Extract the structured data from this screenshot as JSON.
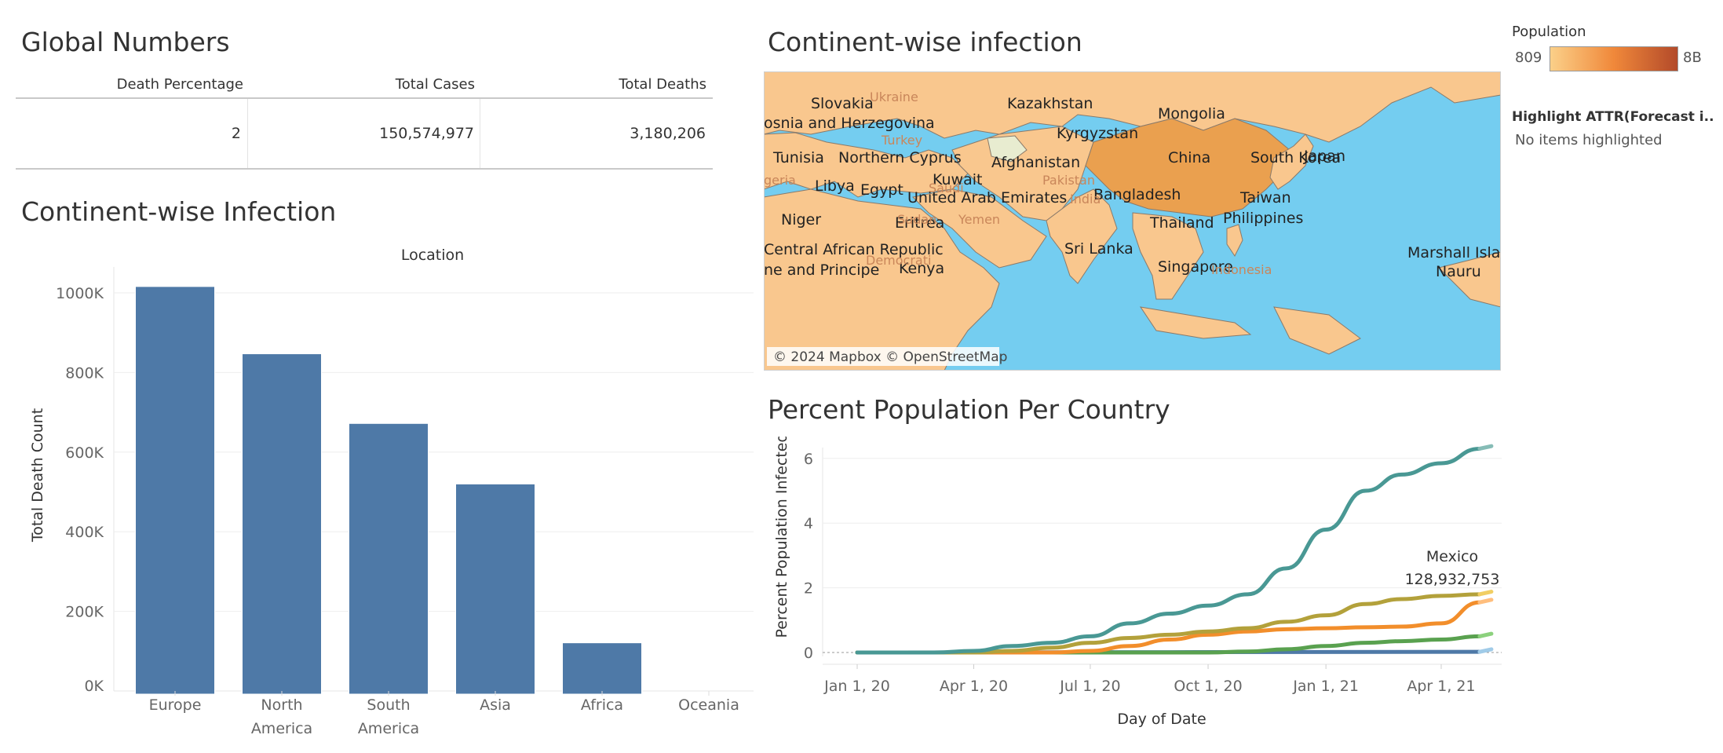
{
  "global": {
    "title": "Global Numbers",
    "headers": [
      "Death Percentage",
      "Total Cases",
      "Total Deaths"
    ],
    "values": [
      "2",
      "150,574,977",
      "3,180,206"
    ]
  },
  "bar_section": {
    "title": "Continent-wise Infection",
    "top_label": "Location",
    "ylabel": "Total Death Count"
  },
  "map_section": {
    "title": "Continent-wise infection",
    "attribution": "© 2024 Mapbox © OpenStreetMap",
    "colors": {
      "water": "#74cdf0",
      "land": "#f9c78e",
      "land_dark": "#efa35a",
      "china": "#eaa04f",
      "border": "#7a6a5a"
    },
    "labels": [
      {
        "text": "Slovakia",
        "style": "main"
      },
      {
        "text": "Kazakhstan",
        "style": "main"
      },
      {
        "text": "Mongolia",
        "style": "main"
      },
      {
        "text": "osnia and Herzegovina",
        "style": "main"
      },
      {
        "text": "Kyrgyzstan",
        "style": "main"
      },
      {
        "text": "Tunisia",
        "style": "main"
      },
      {
        "text": "Northern Cyprus",
        "style": "main"
      },
      {
        "text": "Afghanistan",
        "style": "main"
      },
      {
        "text": "China",
        "style": "main"
      },
      {
        "text": "South Korea",
        "style": "main"
      },
      {
        "text": "Japan",
        "style": "main"
      },
      {
        "text": "Kuwait",
        "style": "main"
      },
      {
        "text": "Libya",
        "style": "main"
      },
      {
        "text": "Egypt",
        "style": "main"
      },
      {
        "text": "United Arab Emirates",
        "style": "main"
      },
      {
        "text": "Bangladesh",
        "style": "main"
      },
      {
        "text": "Taiwan",
        "style": "main"
      },
      {
        "text": "Niger",
        "style": "main"
      },
      {
        "text": "Eritrea",
        "style": "main"
      },
      {
        "text": "Thailand",
        "style": "main"
      },
      {
        "text": "Philippines",
        "style": "main"
      },
      {
        "text": "Central African Republic",
        "style": "main"
      },
      {
        "text": "Sri Lanka",
        "style": "main"
      },
      {
        "text": "Marshall Isla",
        "style": "main"
      },
      {
        "text": "ne and Principe",
        "style": "main"
      },
      {
        "text": "Kenya",
        "style": "main"
      },
      {
        "text": "Singapore",
        "style": "main"
      },
      {
        "text": "Nauru",
        "style": "main"
      },
      {
        "text": "Ukraine",
        "style": "faint"
      },
      {
        "text": "Turkey",
        "style": "faint"
      },
      {
        "text": "geria",
        "style": "faint"
      },
      {
        "text": "Saudi",
        "style": "faint"
      },
      {
        "text": "Pakistan",
        "style": "faint"
      },
      {
        "text": "India",
        "style": "faint"
      },
      {
        "text": "Sudan",
        "style": "faint"
      },
      {
        "text": "Yemen",
        "style": "faint"
      },
      {
        "text": "Democrati",
        "style": "faint"
      },
      {
        "text": "Indonesia",
        "style": "faint"
      }
    ]
  },
  "legend": {
    "population_title": "Population",
    "min_label": "809",
    "max_label": "8B",
    "gradient_start": "#fbd089",
    "gradient_mid": "#f0883a",
    "gradient_end": "#b34a2a",
    "highlight_title": "Highlight ATTR(Forecast i..",
    "highlight_value": "No items highlighted"
  },
  "line_section": {
    "title": "Percent Population Per Country",
    "annotation_name": "Mexico",
    "annotation_value": "128,932,753"
  },
  "chart_data": [
    {
      "type": "bar",
      "title": "Continent-wise Infection",
      "xlabel": "Location",
      "ylabel": "Total Death Count",
      "categories": [
        [
          "Europe"
        ],
        [
          "North",
          "America"
        ],
        [
          "South",
          "America"
        ],
        [
          "Asia"
        ],
        [
          "Africa"
        ],
        [
          "Oceania"
        ]
      ],
      "values": [
        1016000,
        847000,
        672000,
        520000,
        121000,
        0
      ],
      "ylim": [
        0,
        1050000
      ],
      "yticks": [
        0,
        200000,
        400000,
        600000,
        800000,
        1000000
      ],
      "ytick_labels": [
        "0K",
        "200K",
        "400K",
        "600K",
        "800K",
        "1000K"
      ],
      "color": "#4e79a7",
      "grid": true
    },
    {
      "type": "line",
      "title": "Percent Population Per Country",
      "xlabel": "Day of Date",
      "ylabel": "Percent Population Infected",
      "xlim": [
        "2019-12-01",
        "2021-05-25"
      ],
      "ylim": [
        -0.5,
        6.8
      ],
      "xticks": [
        "2020-01-01",
        "2020-04-01",
        "2020-07-01",
        "2020-10-01",
        "2021-01-01",
        "2021-04-01"
      ],
      "xtick_labels": [
        "Jan 1, 20",
        "Apr 1, 20",
        "Jul 1, 20",
        "Oct 1, 20",
        "Jan 1, 21",
        "Apr 1, 21"
      ],
      "yticks": [
        0,
        2,
        4,
        6
      ],
      "ytick_labels": [
        "0",
        "2",
        "4",
        "6"
      ],
      "series": [
        {
          "color": "#499894",
          "forecast_color": "#86bcb6",
          "points": [
            [
              "2020-01-01",
              0
            ],
            [
              "2020-03-01",
              0
            ],
            [
              "2020-04-01",
              0.05
            ],
            [
              "2020-05-01",
              0.2
            ],
            [
              "2020-06-01",
              0.3
            ],
            [
              "2020-07-01",
              0.5
            ],
            [
              "2020-08-01",
              0.9
            ],
            [
              "2020-09-01",
              1.2
            ],
            [
              "2020-10-01",
              1.45
            ],
            [
              "2020-11-01",
              1.8
            ],
            [
              "2020-12-01",
              2.6
            ],
            [
              "2021-01-01",
              3.8
            ],
            [
              "2021-02-01",
              5.0
            ],
            [
              "2021-03-01",
              5.5
            ],
            [
              "2021-04-01",
              5.85
            ],
            [
              "2021-05-01",
              6.3
            ]
          ]
        },
        {
          "color": "#b3a13b",
          "forecast_color": "#f1ce63",
          "points": [
            [
              "2020-01-01",
              0
            ],
            [
              "2020-04-01",
              0
            ],
            [
              "2020-05-01",
              0.05
            ],
            [
              "2020-06-01",
              0.15
            ],
            [
              "2020-07-01",
              0.3
            ],
            [
              "2020-08-01",
              0.45
            ],
            [
              "2020-09-01",
              0.55
            ],
            [
              "2020-10-01",
              0.65
            ],
            [
              "2020-11-01",
              0.75
            ],
            [
              "2020-12-01",
              0.95
            ],
            [
              "2021-01-01",
              1.15
            ],
            [
              "2021-02-01",
              1.5
            ],
            [
              "2021-03-01",
              1.65
            ],
            [
              "2021-04-01",
              1.75
            ],
            [
              "2021-05-01",
              1.8
            ]
          ]
        },
        {
          "color": "#f28e2b",
          "forecast_color": "#ffbe7d",
          "points": [
            [
              "2020-01-01",
              0
            ],
            [
              "2020-06-01",
              0
            ],
            [
              "2020-07-01",
              0.05
            ],
            [
              "2020-08-01",
              0.2
            ],
            [
              "2020-09-01",
              0.4
            ],
            [
              "2020-10-01",
              0.55
            ],
            [
              "2020-11-01",
              0.65
            ],
            [
              "2020-12-01",
              0.72
            ],
            [
              "2021-01-01",
              0.75
            ],
            [
              "2021-02-01",
              0.78
            ],
            [
              "2021-03-01",
              0.8
            ],
            [
              "2021-04-01",
              0.9
            ],
            [
              "2021-05-01",
              1.55
            ]
          ]
        },
        {
          "color": "#59a14f",
          "forecast_color": "#8cd17d",
          "points": [
            [
              "2020-01-01",
              0
            ],
            [
              "2020-10-01",
              0
            ],
            [
              "2020-11-01",
              0.03
            ],
            [
              "2020-12-01",
              0.1
            ],
            [
              "2021-01-01",
              0.2
            ],
            [
              "2021-02-01",
              0.3
            ],
            [
              "2021-03-01",
              0.35
            ],
            [
              "2021-04-01",
              0.4
            ],
            [
              "2021-05-01",
              0.5
            ]
          ]
        },
        {
          "color": "#4e79a7",
          "forecast_color": "#a0cbe8",
          "points": [
            [
              "2020-01-01",
              0
            ],
            [
              "2021-05-01",
              0.02
            ]
          ]
        }
      ],
      "annotation": {
        "label": "Mexico",
        "value": "128,932,753"
      },
      "grid": true
    }
  ]
}
